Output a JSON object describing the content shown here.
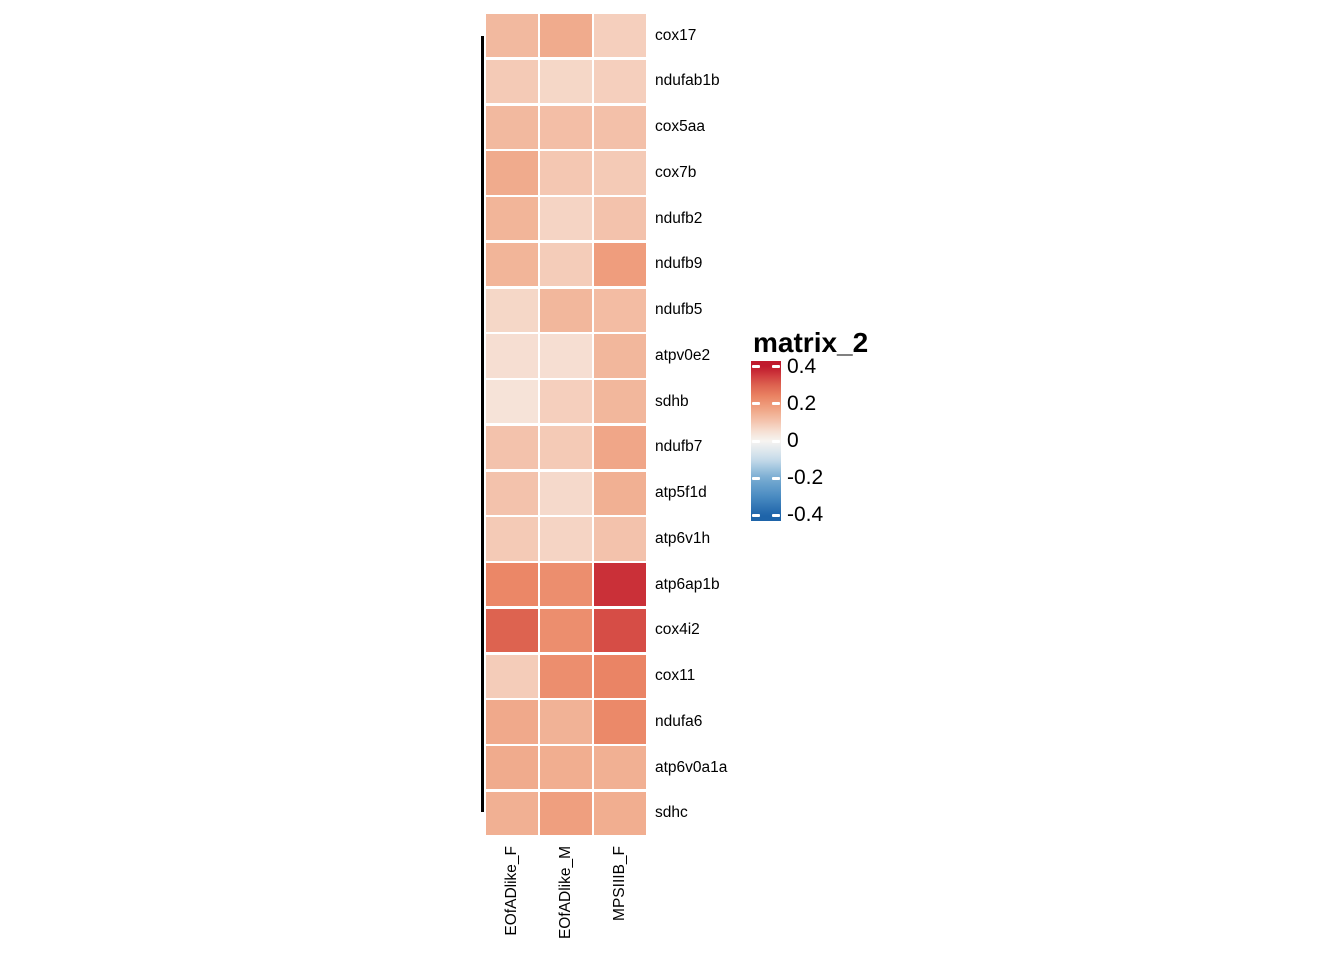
{
  "figure": {
    "background": "#ffffff",
    "legend": {
      "title": "matrix_2",
      "ticks": [
        "0.4",
        "0.2",
        "0",
        "-0.2",
        "-0.4"
      ],
      "tick_values": [
        0.4,
        0.2,
        0,
        -0.2,
        -0.4
      ],
      "range_top": 0.432,
      "range_bottom": -0.432
    },
    "colormap": {
      "stops": [
        {
          "v": -0.4,
          "color": "#1E64A9"
        },
        {
          "v": -0.3,
          "color": "#4A8BC2"
        },
        {
          "v": -0.2,
          "color": "#78ACD2"
        },
        {
          "v": -0.1,
          "color": "#C6DBEA"
        },
        {
          "v": 0.0,
          "color": "#F7F4F1"
        },
        {
          "v": 0.05,
          "color": "#F6E1D5"
        },
        {
          "v": 0.1,
          "color": "#F4C7B2"
        },
        {
          "v": 0.15,
          "color": "#F1B093"
        },
        {
          "v": 0.2,
          "color": "#EE9877"
        },
        {
          "v": 0.25,
          "color": "#E97F60"
        },
        {
          "v": 0.3,
          "color": "#DD6350"
        },
        {
          "v": 0.35,
          "color": "#D13F40"
        },
        {
          "v": 0.4,
          "color": "#C01A2D"
        }
      ]
    }
  },
  "chart_data": {
    "type": "heatmap",
    "title": "",
    "legend_title": "matrix_2",
    "columns": [
      "EOfADlike_F",
      "EOfADlike_M",
      "MPSIIIB_F"
    ],
    "rows": [
      "cox17",
      "ndufab1b",
      "cox5aa",
      "cox7b",
      "ndufb2",
      "ndufb9",
      "ndufb5",
      "atpv0e2",
      "sdhb",
      "ndufb7",
      "atp5f1d",
      "atp6v1h",
      "atp6ap1b",
      "cox4i2",
      "cox11",
      "ndufa6",
      "atp6v0a1a",
      "sdhc"
    ],
    "values": [
      [
        0.13,
        0.16,
        0.085
      ],
      [
        0.095,
        0.07,
        0.085
      ],
      [
        0.13,
        0.12,
        0.115
      ],
      [
        0.16,
        0.1,
        0.095
      ],
      [
        0.14,
        0.075,
        0.11
      ],
      [
        0.14,
        0.09,
        0.19
      ],
      [
        0.07,
        0.135,
        0.125
      ],
      [
        0.055,
        0.055,
        0.135
      ],
      [
        0.045,
        0.085,
        0.135
      ],
      [
        0.11,
        0.095,
        0.17
      ],
      [
        0.11,
        0.065,
        0.15
      ],
      [
        0.095,
        0.075,
        0.11
      ],
      [
        0.235,
        0.22,
        0.37
      ],
      [
        0.3,
        0.22,
        0.33
      ],
      [
        0.09,
        0.22,
        0.24
      ],
      [
        0.165,
        0.145,
        0.23
      ],
      [
        0.16,
        0.155,
        0.15
      ],
      [
        0.15,
        0.185,
        0.155
      ]
    ],
    "value_range": [
      -0.4,
      0.4
    ],
    "legend_ticks": [
      "0.4",
      "0.2",
      "0",
      "-0.2",
      "-0.4"
    ],
    "colormap_description": "diverging blue-white-red (RdBu reversed)",
    "legend_position": "right",
    "grid": "white cell borders",
    "row_annotation": "black vertical line spanning all rows on left side"
  }
}
